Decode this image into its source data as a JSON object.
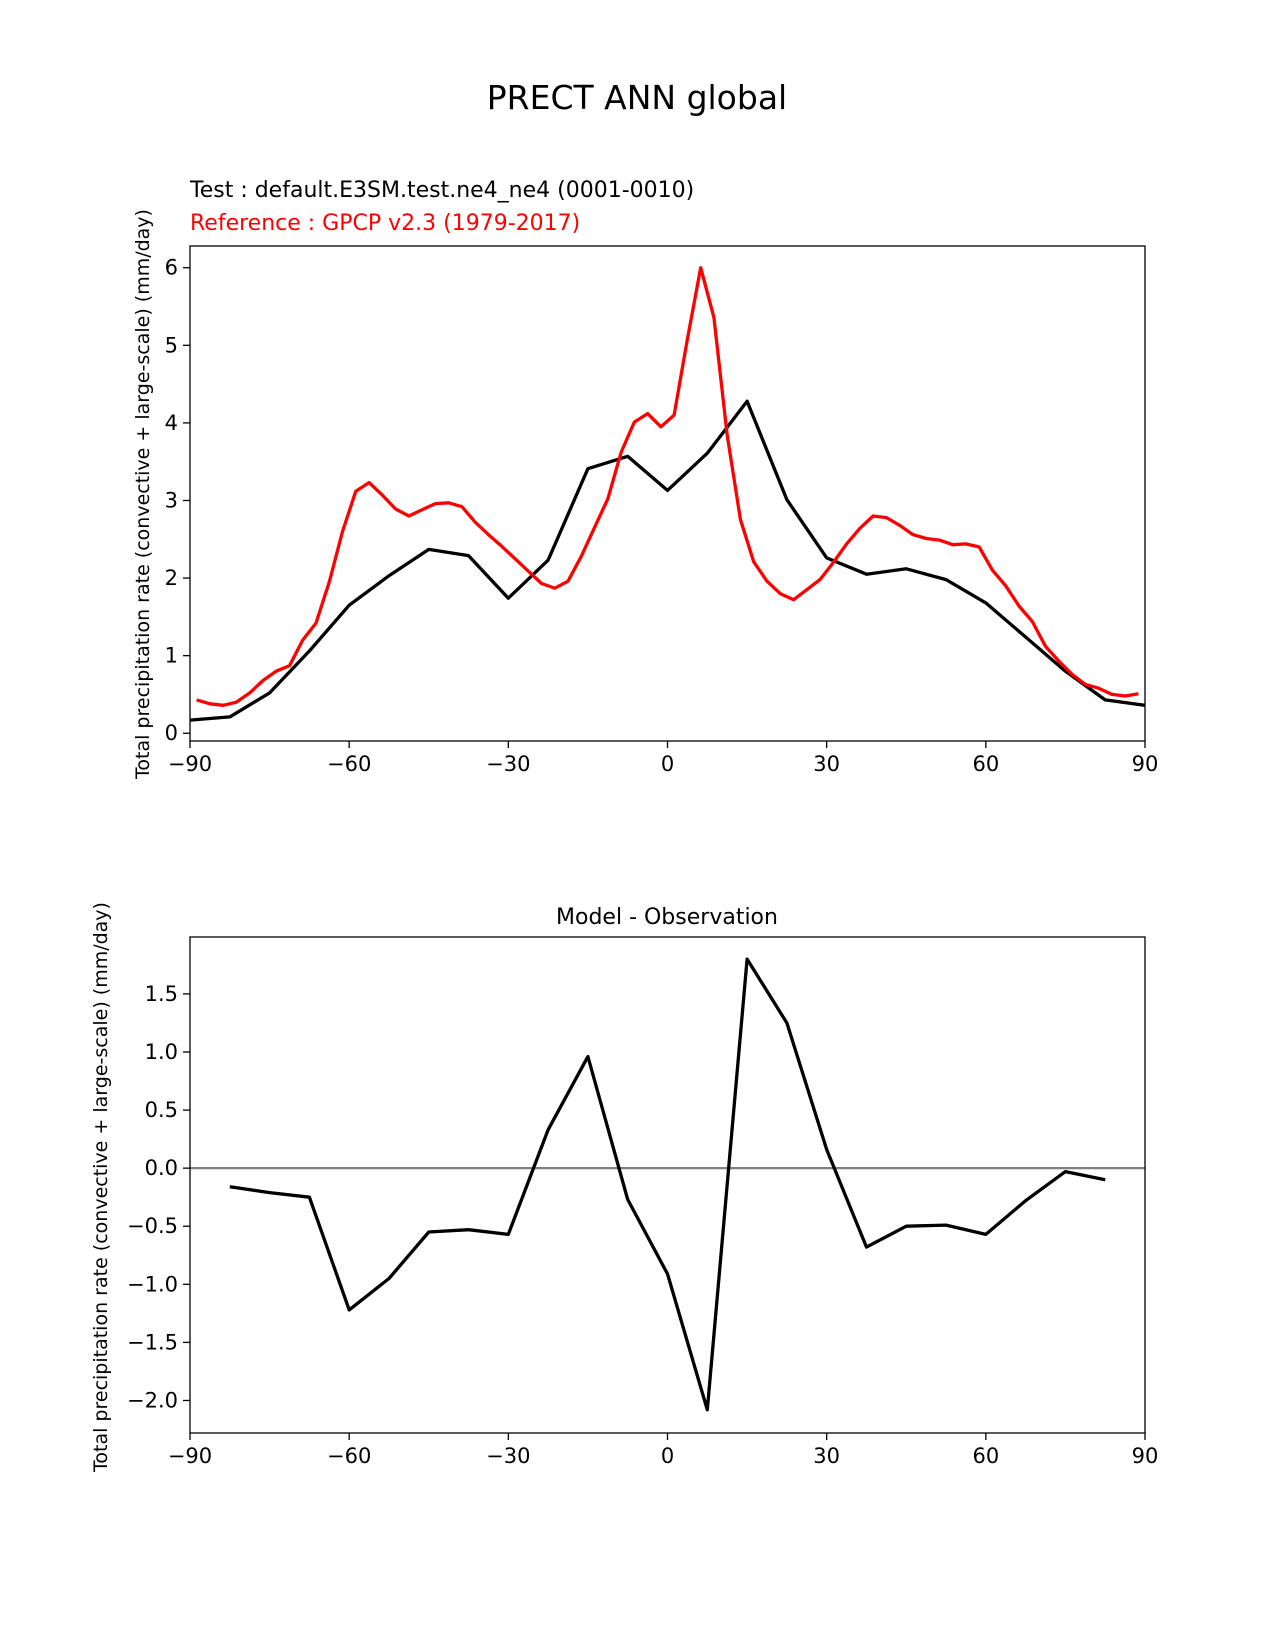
{
  "suptitle": "PRECT ANN global",
  "colors": {
    "test": "#000000",
    "reference": "#ff0000",
    "zero_line": "#808080"
  },
  "chart_data": [
    {
      "type": "line",
      "test_label": "Test : default.E3SM.test.ne4_ne4 (0001-0010)",
      "reference_label": "Reference : GPCP v2.3 (1979-2017)",
      "xlabel": "",
      "ylabel": "Total precipitation rate (convective + large-scale) (mm/day)",
      "xlim": [
        -90,
        90
      ],
      "ylim": [
        -0.1,
        6.28
      ],
      "xticks": [
        -90,
        -60,
        -30,
        0,
        30,
        60,
        90
      ],
      "yticks": [
        0,
        1,
        2,
        3,
        4,
        5,
        6
      ],
      "series": [
        {
          "name": "Test",
          "x": [
            -90,
            -82.5,
            -75,
            -67.5,
            -60,
            -52.5,
            -45,
            -37.5,
            -30,
            -22.5,
            -15,
            -7.5,
            0,
            7.5,
            15,
            22.5,
            30,
            37.5,
            45,
            52.5,
            60,
            67.5,
            75,
            82.5,
            90
          ],
          "values": [
            0.17,
            0.21,
            0.52,
            1.06,
            1.65,
            2.03,
            2.37,
            2.29,
            1.74,
            2.23,
            3.41,
            3.57,
            3.13,
            3.61,
            4.28,
            3.01,
            2.26,
            2.05,
            2.12,
            1.98,
            1.68,
            1.24,
            0.8,
            0.43,
            0.36
          ]
        },
        {
          "name": "Reference",
          "x": [
            -88.75,
            -86.25,
            -83.75,
            -81.25,
            -78.75,
            -76.25,
            -73.75,
            -71.25,
            -68.75,
            -66.25,
            -63.75,
            -61.25,
            -58.75,
            -56.25,
            -53.75,
            -51.25,
            -48.75,
            -46.25,
            -43.75,
            -41.25,
            -38.75,
            -36.25,
            -33.75,
            -31.25,
            -28.75,
            -26.25,
            -23.75,
            -21.25,
            -18.75,
            -16.25,
            -13.75,
            -11.25,
            -8.75,
            -6.25,
            -3.75,
            -1.25,
            1.25,
            3.75,
            6.25,
            8.75,
            11.25,
            13.75,
            16.25,
            18.75,
            21.25,
            23.75,
            26.25,
            28.75,
            31.25,
            33.75,
            36.25,
            38.75,
            41.25,
            43.75,
            46.25,
            48.75,
            51.25,
            53.75,
            56.25,
            58.75,
            61.25,
            63.75,
            66.25,
            68.75,
            71.25,
            73.75,
            76.25,
            78.75,
            81.25,
            83.75,
            86.25,
            88.75
          ],
          "values": [
            0.43,
            0.38,
            0.36,
            0.4,
            0.52,
            0.68,
            0.8,
            0.87,
            1.2,
            1.42,
            1.95,
            2.6,
            3.12,
            3.23,
            3.07,
            2.89,
            2.8,
            2.88,
            2.96,
            2.97,
            2.92,
            2.72,
            2.56,
            2.41,
            2.25,
            2.09,
            1.93,
            1.87,
            1.96,
            2.28,
            2.65,
            3.02,
            3.62,
            4.01,
            4.12,
            3.95,
            4.1,
            5.08,
            6.0,
            5.36,
            3.84,
            2.75,
            2.21,
            1.96,
            1.8,
            1.72,
            1.85,
            1.98,
            2.2,
            2.44,
            2.64,
            2.8,
            2.78,
            2.68,
            2.56,
            2.51,
            2.49,
            2.43,
            2.44,
            2.4,
            2.1,
            1.9,
            1.64,
            1.44,
            1.12,
            0.93,
            0.76,
            0.63,
            0.58,
            0.5,
            0.48,
            0.51
          ]
        }
      ]
    },
    {
      "type": "line",
      "title": "Model - Observation",
      "xlabel": "",
      "ylabel": "Total precipitation rate (convective + large-scale) (mm/day)",
      "xlim": [
        -90,
        90
      ],
      "ylim": [
        -2.28,
        1.99
      ],
      "xticks": [
        -90,
        -60,
        -30,
        0,
        30,
        60,
        90
      ],
      "yticks": [
        -2.0,
        -1.5,
        -1.0,
        -0.5,
        0.0,
        0.5,
        1.0,
        1.5
      ],
      "ytick_labels": [
        "−2.0",
        "−1.5",
        "−1.0",
        "−0.5",
        "0.0",
        "0.5",
        "1.0",
        "1.5"
      ],
      "zero_line": 0,
      "series": [
        {
          "name": "Model - Observation",
          "x": [
            -82.5,
            -75,
            -67.5,
            -60,
            -52.5,
            -45,
            -37.5,
            -30,
            -22.5,
            -15,
            -7.5,
            0,
            7.5,
            15,
            22.5,
            30,
            37.5,
            45,
            52.5,
            60,
            67.5,
            75,
            82.5
          ],
          "values": [
            -0.16,
            -0.21,
            -0.25,
            -1.22,
            -0.95,
            -0.55,
            -0.53,
            -0.57,
            0.33,
            0.96,
            -0.27,
            -0.91,
            -2.08,
            1.8,
            1.25,
            0.16,
            -0.68,
            -0.5,
            -0.49,
            -0.57,
            -0.28,
            -0.03,
            -0.1
          ]
        }
      ]
    }
  ]
}
